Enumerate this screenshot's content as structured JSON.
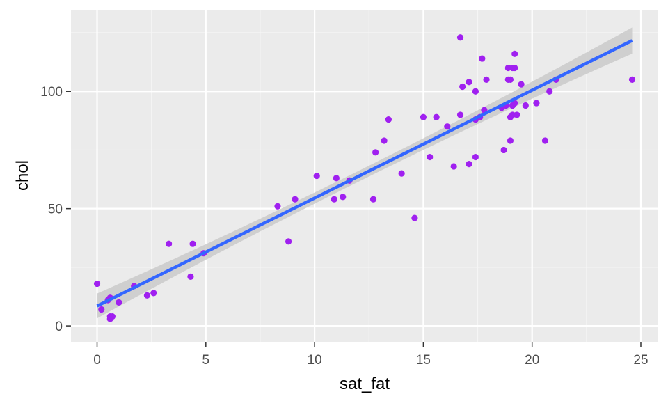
{
  "chart_data": {
    "type": "scatter",
    "title": "",
    "xlabel": "sat_fat",
    "ylabel": "chol",
    "xlim": [
      -1.2,
      25.8
    ],
    "ylim": [
      -6.8,
      134.8
    ],
    "x_ticks": [
      0,
      5,
      10,
      15,
      20,
      25
    ],
    "y_ticks": [
      0,
      50,
      100
    ],
    "x_tick_labels": [
      "0",
      "5",
      "10",
      "15",
      "20",
      "25"
    ],
    "y_tick_labels": [
      "0",
      "50",
      "100"
    ],
    "grid": true,
    "legend": "none",
    "colors": {
      "panel": "#ebebeb",
      "grid_major": "#ffffff",
      "grid_minor": "#f5f5f5",
      "points": "#a020f0",
      "fit_line": "#3366ff",
      "ribbon": "#c8c8c8",
      "tick_text": "#4d4d4d",
      "tick_mark": "#333333"
    },
    "series": [
      {
        "name": "points",
        "x": [
          0.0,
          0.2,
          0.5,
          0.6,
          0.6,
          0.6,
          0.7,
          1.0,
          1.7,
          2.3,
          2.6,
          3.3,
          4.3,
          4.4,
          4.9,
          8.3,
          8.8,
          9.1,
          10.1,
          10.9,
          11.0,
          11.3,
          11.6,
          12.7,
          12.8,
          13.2,
          13.4,
          14.0,
          14.6,
          15.0,
          15.3,
          15.6,
          16.1,
          16.4,
          16.7,
          16.7,
          16.8,
          17.1,
          17.1,
          17.4,
          17.4,
          17.4,
          17.6,
          17.7,
          17.8,
          17.9,
          18.6,
          18.7,
          18.8,
          18.9,
          18.9,
          19.0,
          19.0,
          19.0,
          19.1,
          19.1,
          19.1,
          19.2,
          19.2,
          19.2,
          19.3,
          19.5,
          19.7,
          20.2,
          20.6,
          20.8,
          21.1,
          24.6
        ],
        "y": [
          18,
          7,
          11,
          12,
          4,
          3,
          4,
          10,
          17,
          13,
          14,
          35,
          21,
          35,
          31,
          51,
          36,
          54,
          64,
          54,
          63,
          55,
          62,
          54,
          74,
          79,
          88,
          65,
          46,
          89,
          72,
          89,
          85,
          68,
          123,
          90,
          102,
          69,
          104,
          88,
          72,
          100,
          89,
          114,
          92,
          105,
          93,
          75,
          94,
          105,
          110,
          79,
          89,
          105,
          110,
          90,
          94,
          116,
          95,
          110,
          90,
          103,
          94,
          95,
          79,
          100,
          105,
          105
        ]
      }
    ],
    "fit": {
      "method": "lm",
      "x_range": [
        0.0,
        24.6
      ],
      "intercept": 8.5,
      "slope": 4.6,
      "ci_halfwidth_min": 2.3,
      "ci_halfwidth_max": 5.6,
      "ci_center_x": 12.0
    }
  }
}
